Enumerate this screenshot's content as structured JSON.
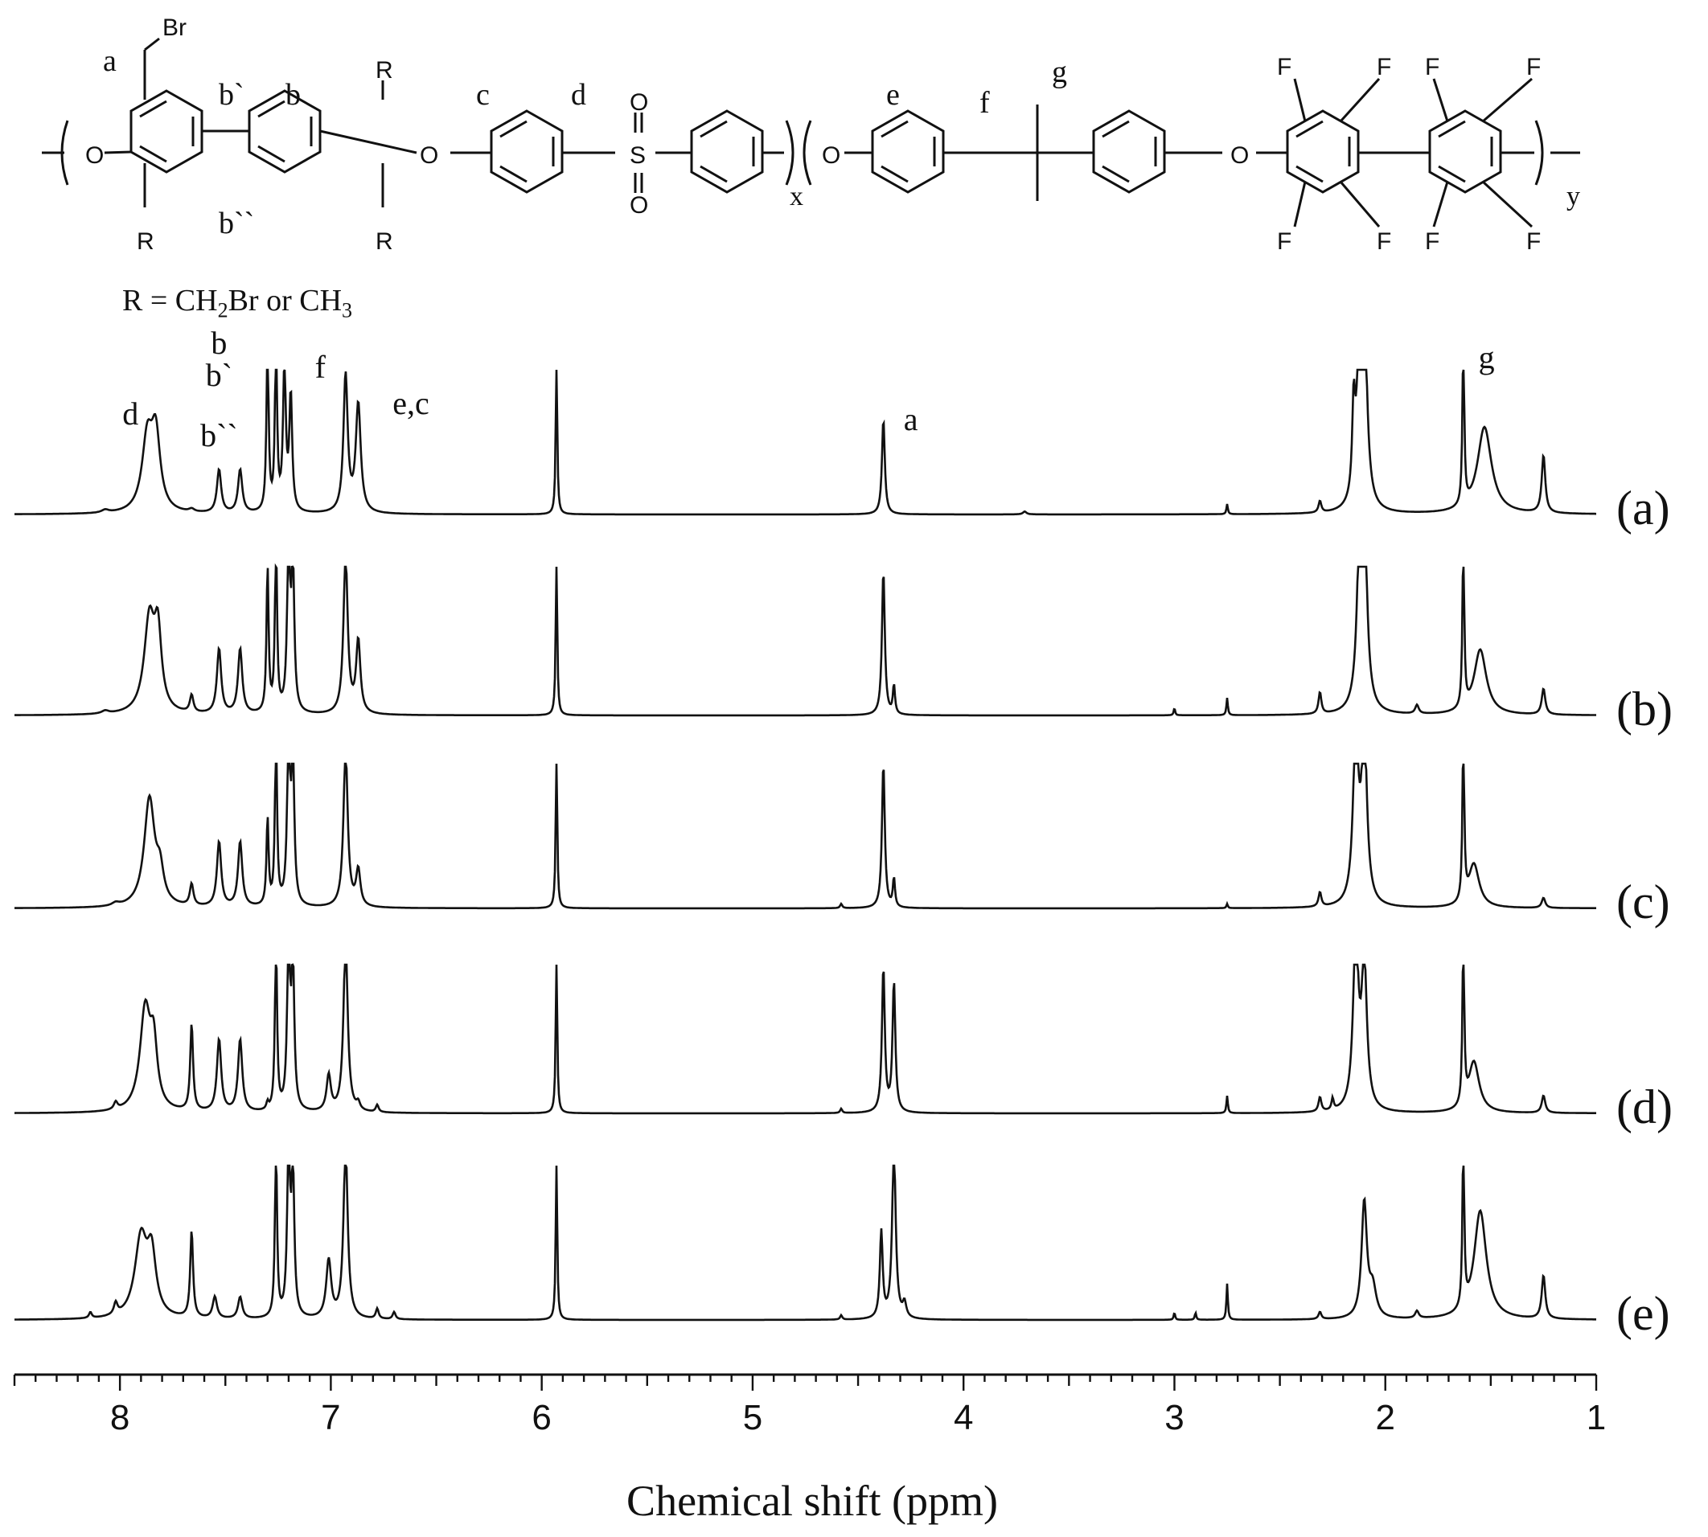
{
  "scheme": {
    "atoms": {
      "br": "Br",
      "o": "O",
      "s": "S",
      "r": "R",
      "f": "F"
    },
    "labels": {
      "a": "a",
      "b": "b",
      "b1": "b`",
      "b2": "b``",
      "c": "c",
      "d": "d",
      "e": "e",
      "f": "f",
      "g": "g"
    },
    "subscripts": {
      "x": "x",
      "y": "y"
    },
    "caption": {
      "pre": "R = CH",
      "sub1": "2",
      "mid": "Br or CH",
      "sub2": "3"
    }
  },
  "chart_data": {
    "type": "line",
    "xlabel": "Chemical shift (ppm)",
    "xlim": [
      8.5,
      1.0
    ],
    "x_reversed": true,
    "xticks": [
      8,
      7,
      6,
      5,
      4,
      3,
      2,
      1
    ],
    "tick_labels": [
      "8",
      "7",
      "6",
      "5",
      "4",
      "3",
      "2",
      "1"
    ],
    "peak_labels": [
      {
        "text": "d",
        "x": 7.95
      },
      {
        "text": "b",
        "x": 7.53
      },
      {
        "text": "b`",
        "x": 7.53
      },
      {
        "text": "b``",
        "x": 7.53
      },
      {
        "text": "f",
        "x": 7.05
      },
      {
        "text": "e,c",
        "x": 6.62
      },
      {
        "text": "a",
        "x": 4.25
      },
      {
        "text": "g",
        "x": 1.52
      }
    ],
    "series": [
      {
        "name": "(a)",
        "peaks": [
          [
            8.07,
            0.02,
            0.02
          ],
          [
            7.87,
            0.5,
            0.03
          ],
          [
            7.83,
            0.5,
            0.025
          ],
          [
            7.66,
            0.02,
            0.015
          ],
          [
            7.53,
            0.3,
            0.012
          ],
          [
            7.43,
            0.3,
            0.012
          ],
          [
            7.3,
            1.2,
            0.006
          ],
          [
            7.26,
            1.2,
            0.006
          ],
          [
            7.22,
            1.0,
            0.008
          ],
          [
            7.19,
            0.8,
            0.008
          ],
          [
            6.93,
            0.95,
            0.012
          ],
          [
            6.87,
            0.75,
            0.014
          ],
          [
            5.93,
            1.2,
            0.004
          ],
          [
            4.38,
            0.66,
            0.008
          ],
          [
            3.71,
            0.02,
            0.01
          ],
          [
            2.75,
            0.07,
            0.004
          ],
          [
            2.31,
            0.08,
            0.008
          ],
          [
            2.15,
            0.6,
            0.008
          ],
          [
            2.12,
            1.2,
            0.015
          ],
          [
            2.1,
            1.2,
            0.015
          ],
          [
            1.63,
            1.2,
            0.005
          ],
          [
            1.53,
            0.6,
            0.04
          ],
          [
            1.25,
            0.4,
            0.01
          ]
        ]
      },
      {
        "name": "(b)",
        "peaks": [
          [
            8.07,
            0.02,
            0.02
          ],
          [
            7.86,
            0.65,
            0.03
          ],
          [
            7.82,
            0.5,
            0.02
          ],
          [
            7.66,
            0.12,
            0.01
          ],
          [
            7.53,
            0.45,
            0.012
          ],
          [
            7.43,
            0.45,
            0.012
          ],
          [
            7.3,
            1.0,
            0.006
          ],
          [
            7.26,
            1.2,
            0.006
          ],
          [
            7.2,
            1.2,
            0.008
          ],
          [
            7.18,
            1.0,
            0.008
          ],
          [
            6.93,
            1.1,
            0.012
          ],
          [
            6.87,
            0.5,
            0.012
          ],
          [
            5.93,
            1.2,
            0.004
          ],
          [
            4.38,
            1.0,
            0.008
          ],
          [
            4.33,
            0.2,
            0.006
          ],
          [
            3.0,
            0.05,
            0.004
          ],
          [
            2.75,
            0.12,
            0.004
          ],
          [
            2.31,
            0.15,
            0.008
          ],
          [
            2.12,
            1.2,
            0.015
          ],
          [
            2.1,
            1.2,
            0.015
          ],
          [
            1.85,
            0.06,
            0.01
          ],
          [
            1.63,
            1.2,
            0.005
          ],
          [
            1.55,
            0.45,
            0.035
          ],
          [
            1.25,
            0.18,
            0.01
          ]
        ]
      },
      {
        "name": "(c)",
        "peaks": [
          [
            8.02,
            0.02,
            0.02
          ],
          [
            7.86,
            0.75,
            0.03
          ],
          [
            7.81,
            0.2,
            0.02
          ],
          [
            7.66,
            0.15,
            0.01
          ],
          [
            7.53,
            0.45,
            0.012
          ],
          [
            7.43,
            0.45,
            0.012
          ],
          [
            7.3,
            0.6,
            0.006
          ],
          [
            7.26,
            1.2,
            0.006
          ],
          [
            7.2,
            1.2,
            0.008
          ],
          [
            7.18,
            1.0,
            0.008
          ],
          [
            6.93,
            1.1,
            0.012
          ],
          [
            6.87,
            0.25,
            0.012
          ],
          [
            5.93,
            1.2,
            0.004
          ],
          [
            4.58,
            0.03,
            0.006
          ],
          [
            4.38,
            1.0,
            0.008
          ],
          [
            4.33,
            0.2,
            0.006
          ],
          [
            2.75,
            0.03,
            0.004
          ],
          [
            2.31,
            0.1,
            0.008
          ],
          [
            2.14,
            1.2,
            0.015
          ],
          [
            2.1,
            1.2,
            0.015
          ],
          [
            1.63,
            1.2,
            0.005
          ],
          [
            1.58,
            0.3,
            0.03
          ],
          [
            1.25,
            0.07,
            0.01
          ]
        ]
      },
      {
        "name": "(d)",
        "peaks": [
          [
            8.02,
            0.05,
            0.01
          ],
          [
            7.88,
            0.7,
            0.03
          ],
          [
            7.84,
            0.4,
            0.02
          ],
          [
            7.66,
            0.6,
            0.008
          ],
          [
            7.53,
            0.5,
            0.012
          ],
          [
            7.43,
            0.5,
            0.012
          ],
          [
            7.3,
            0.05,
            0.006
          ],
          [
            7.26,
            1.2,
            0.006
          ],
          [
            7.2,
            1.2,
            0.008
          ],
          [
            7.18,
            1.0,
            0.008
          ],
          [
            7.01,
            0.25,
            0.012
          ],
          [
            6.93,
            1.2,
            0.012
          ],
          [
            6.87,
            0.05,
            0.01
          ],
          [
            6.78,
            0.05,
            0.008
          ],
          [
            5.93,
            1.2,
            0.004
          ],
          [
            4.58,
            0.03,
            0.006
          ],
          [
            4.38,
            1.0,
            0.008
          ],
          [
            4.33,
            0.9,
            0.008
          ],
          [
            2.75,
            0.12,
            0.004
          ],
          [
            2.31,
            0.1,
            0.008
          ],
          [
            2.25,
            0.08,
            0.006
          ],
          [
            2.14,
            1.2,
            0.015
          ],
          [
            2.1,
            1.0,
            0.015
          ],
          [
            1.63,
            1.2,
            0.005
          ],
          [
            1.58,
            0.35,
            0.03
          ],
          [
            1.25,
            0.12,
            0.01
          ]
        ]
      },
      {
        "name": "(e)",
        "peaks": [
          [
            8.14,
            0.04,
            0.008
          ],
          [
            8.02,
            0.08,
            0.01
          ],
          [
            7.9,
            0.55,
            0.035
          ],
          [
            7.85,
            0.4,
            0.025
          ],
          [
            7.66,
            0.6,
            0.008
          ],
          [
            7.55,
            0.15,
            0.012
          ],
          [
            7.43,
            0.15,
            0.012
          ],
          [
            7.26,
            1.2,
            0.006
          ],
          [
            7.2,
            1.2,
            0.008
          ],
          [
            7.18,
            1.0,
            0.008
          ],
          [
            7.01,
            0.4,
            0.014
          ],
          [
            6.93,
            1.2,
            0.012
          ],
          [
            6.78,
            0.07,
            0.008
          ],
          [
            6.7,
            0.05,
            0.008
          ],
          [
            5.93,
            1.2,
            0.004
          ],
          [
            4.58,
            0.03,
            0.006
          ],
          [
            4.39,
            0.6,
            0.008
          ],
          [
            4.33,
            1.2,
            0.01
          ],
          [
            4.28,
            0.1,
            0.01
          ],
          [
            3.0,
            0.05,
            0.004
          ],
          [
            2.9,
            0.05,
            0.004
          ],
          [
            2.75,
            0.25,
            0.004
          ],
          [
            2.31,
            0.05,
            0.008
          ],
          [
            2.1,
            0.8,
            0.015
          ],
          [
            2.06,
            0.2,
            0.02
          ],
          [
            1.85,
            0.05,
            0.01
          ],
          [
            1.63,
            1.2,
            0.005
          ],
          [
            1.55,
            0.75,
            0.035
          ],
          [
            1.25,
            0.3,
            0.01
          ]
        ]
      }
    ]
  }
}
